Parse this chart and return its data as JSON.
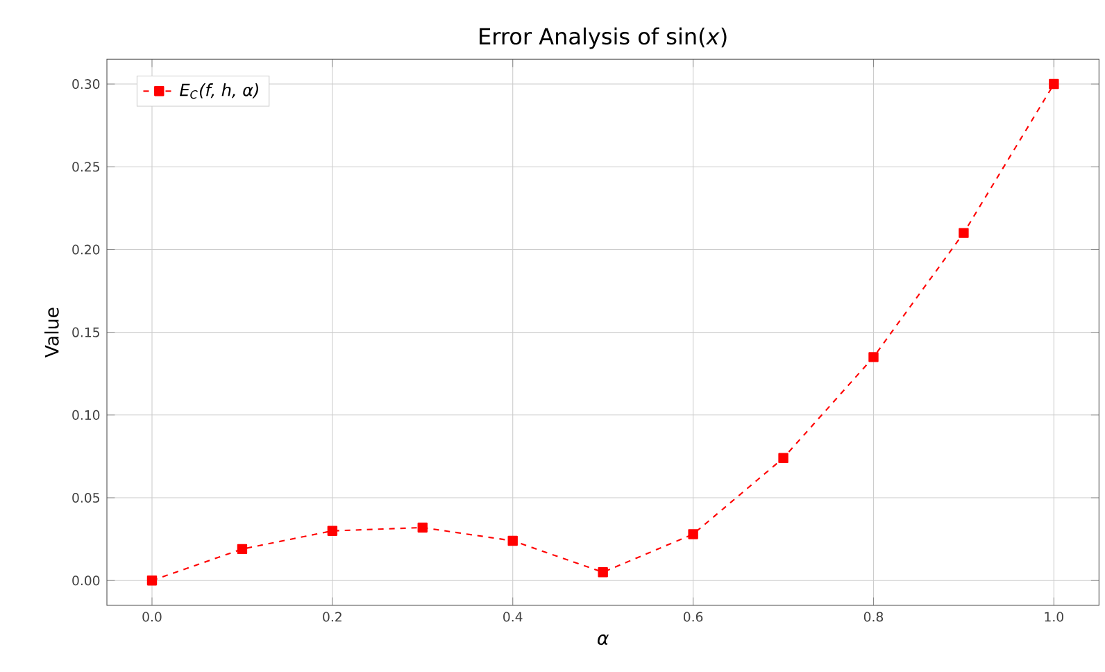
{
  "chart_data": {
    "type": "line",
    "title": "Error Analysis of sin(*x*)",
    "xlabel": "α",
    "ylabel": "Value",
    "x": [
      0.0,
      0.1,
      0.2,
      0.3,
      0.4,
      0.5,
      0.6,
      0.7,
      0.8,
      0.9,
      1.0
    ],
    "series": [
      {
        "name": "E$_{C}$(f, h, α)",
        "color": "#ff0000",
        "values": [
          0.0,
          0.019,
          0.03,
          0.032,
          0.024,
          0.005,
          0.028,
          0.074,
          0.135,
          0.21,
          0.3
        ]
      }
    ],
    "xlim": [
      -0.05,
      1.05
    ],
    "ylim": [
      -0.015,
      0.315
    ],
    "xticks": [
      {
        "value": 0,
        "label": "0.0"
      },
      {
        "value": 0.2,
        "label": "0.2"
      },
      {
        "value": 0.4,
        "label": "0.4"
      },
      {
        "value": 0.6,
        "label": "0.6"
      },
      {
        "value": 0.8,
        "label": "0.8"
      },
      {
        "value": 1,
        "label": "1.0"
      }
    ],
    "yticks": [
      {
        "value": 0,
        "label": "0.00"
      },
      {
        "value": 0.05,
        "label": "0.05"
      },
      {
        "value": 0.1,
        "label": "0.10"
      },
      {
        "value": 0.15,
        "label": "0.15"
      },
      {
        "value": 0.2,
        "label": "0.20"
      },
      {
        "value": 0.25,
        "label": "0.25"
      },
      {
        "value": 0.3,
        "label": "0.30"
      }
    ],
    "grid": true,
    "legend": "top left",
    "marker": "square",
    "line_style": "dashed"
  }
}
